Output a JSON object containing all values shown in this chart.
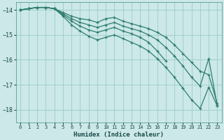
{
  "xlabel": "Humidex (Indice chaleur)",
  "bg_color": "#cce8e8",
  "grid_color": "#99cccc",
  "line_color": "#2e7d6e",
  "xlim": [
    -0.5,
    23.5
  ],
  "ylim": [
    -18.5,
    -13.7
  ],
  "yticks": [
    -18,
    -17,
    -16,
    -15,
    -14
  ],
  "xticks": [
    0,
    1,
    2,
    3,
    4,
    5,
    6,
    7,
    8,
    9,
    10,
    11,
    12,
    13,
    14,
    15,
    16,
    17,
    18,
    19,
    20,
    21,
    22,
    23
  ],
  "series": [
    {
      "x": [
        0,
        1,
        2,
        3,
        4,
        5,
        6,
        7,
        8,
        9,
        10,
        11,
        12,
        13,
        14,
        15,
        16,
        17,
        18,
        19,
        20,
        21,
        22,
        23
      ],
      "y": [
        -14.0,
        -13.95,
        -13.9,
        -13.9,
        -13.95,
        -14.1,
        -14.25,
        -14.35,
        -14.4,
        -14.5,
        -14.35,
        -14.3,
        -14.45,
        -14.55,
        -14.65,
        -14.75,
        -14.9,
        -15.1,
        -15.4,
        -15.75,
        -16.1,
        -16.45,
        -16.6,
        -17.75
      ]
    },
    {
      "x": [
        0,
        1,
        2,
        3,
        4,
        5,
        6,
        7,
        8,
        9,
        10,
        11,
        12,
        13,
        14,
        15,
        16,
        17,
        18,
        19,
        20,
        21,
        22,
        23
      ],
      "y": [
        -14.0,
        -13.95,
        -13.9,
        -13.9,
        -13.95,
        -14.15,
        -14.35,
        -14.5,
        -14.6,
        -14.7,
        -14.6,
        -14.5,
        -14.65,
        -14.75,
        -14.85,
        -15.0,
        -15.2,
        -15.5,
        -15.85,
        -16.25,
        -16.7,
        -17.05,
        -15.95,
        -17.85
      ]
    },
    {
      "x": [
        0,
        1,
        2,
        3,
        4,
        5,
        6,
        7,
        8,
        9,
        10,
        11,
        12,
        13,
        14,
        15,
        16,
        17
      ],
      "y": [
        -14.0,
        -13.95,
        -13.9,
        -13.9,
        -13.95,
        -14.2,
        -14.45,
        -14.65,
        -14.8,
        -14.9,
        -14.8,
        -14.7,
        -14.85,
        -14.95,
        -15.1,
        -15.3,
        -15.65,
        -16.05
      ]
    },
    {
      "x": [
        0,
        1,
        2,
        3,
        4,
        5,
        6,
        7,
        8,
        9,
        10,
        11,
        12,
        13,
        14,
        15,
        16,
        17,
        18,
        19,
        20,
        21,
        22,
        23
      ],
      "y": [
        -14.0,
        -13.95,
        -13.9,
        -13.9,
        -13.95,
        -14.25,
        -14.6,
        -14.85,
        -15.05,
        -15.2,
        -15.1,
        -15.0,
        -15.15,
        -15.3,
        -15.45,
        -15.65,
        -15.95,
        -16.3,
        -16.7,
        -17.15,
        -17.6,
        -17.95,
        -17.1,
        -17.85
      ]
    }
  ]
}
